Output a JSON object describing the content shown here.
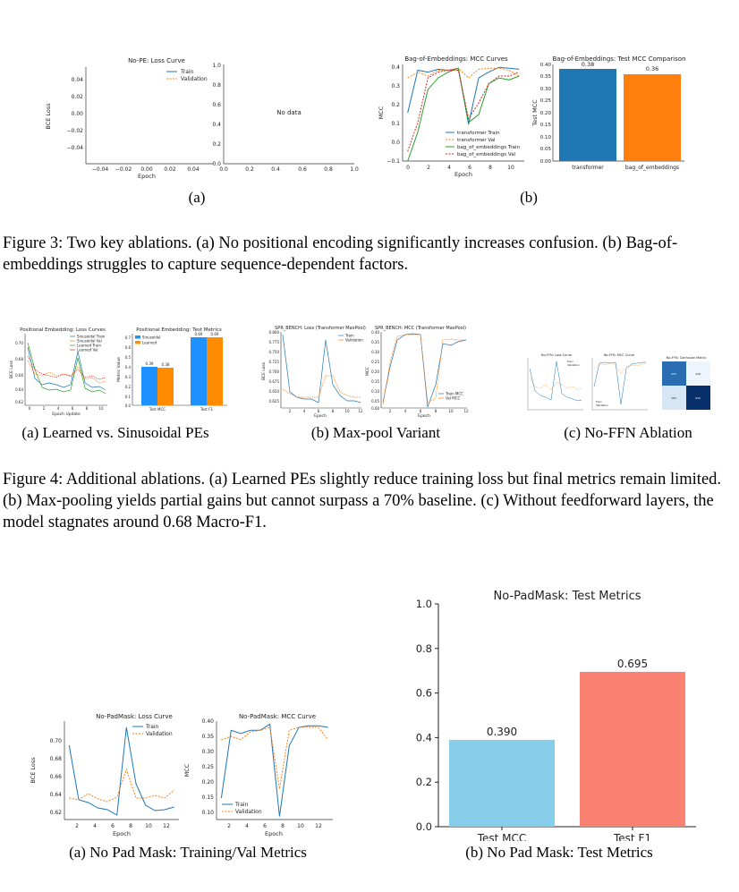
{
  "figure3": {
    "nope_loss": {
      "title": "No-PE: Loss Curve",
      "xlabel": "Epoch",
      "ylabel": "BCE Loss",
      "legend": [
        "Train",
        "Validation"
      ],
      "yticks": [
        "0.04",
        "0.02",
        "0.00",
        "−0.02",
        "−0.04"
      ],
      "xticks": [
        "−0.04",
        "−0.02",
        "0.00",
        "0.02",
        "0.04"
      ]
    },
    "nope_mcc": {
      "text": "No data",
      "yticks": [
        "1.0",
        "0.8",
        "0.6",
        "0.4",
        "0.2",
        "0.0"
      ],
      "xticks": [
        "0.0",
        "0.2",
        "0.4",
        "0.6",
        "0.8",
        "1.0"
      ]
    },
    "sublabel_a": "(a)",
    "boe_curves": {
      "title": "Bag-of-Embeddings: MCC Curves",
      "xlabel": "Epoch",
      "ylabel": "MCC",
      "legend": [
        "transformer Train",
        "transformer Val",
        "bag_of_embeddings Train",
        "bag_of_embeddings Val"
      ]
    },
    "boe_bar": {
      "title": "Bag-of-Embeddings: Test MCC Comparison",
      "ylabel": "Test MCC",
      "yticks": [
        "0.40",
        "0.35",
        "0.30",
        "0.25",
        "0.20",
        "0.15",
        "0.10",
        "0.05",
        "0.00"
      ],
      "labels": [
        "transformer",
        "bag_of_embeddings"
      ],
      "values_text": [
        "0.38",
        "0.36"
      ]
    },
    "sublabel_b": "(b)",
    "caption": "Figure 3: Two key ablations. (a) No positional encoding significantly increases confusion. (b) Bag-of-embeddings struggles to capture sequence-dependent factors."
  },
  "figure4": {
    "pe_loss": {
      "title": "Positional Embedding: Loss Curves",
      "xlabel": "Epoch Update",
      "ylabel": "BCE Loss",
      "legend": [
        "Sinusoidal Train",
        "Sinusoidal Val",
        "Learned Train",
        "Learned Val"
      ]
    },
    "pe_metrics": {
      "title": "Positional Embedding: Test Metrics",
      "ylabel": "Metric Value",
      "legend": [
        "Sinusoidal",
        "Learned"
      ],
      "categories": [
        "Test MCC",
        "Test F1"
      ],
      "values_text": [
        "0.39",
        "0.38",
        "0.69",
        "0.69"
      ]
    },
    "sublabel_a": "(a) Learned vs. Sinusoidal PEs",
    "mp_loss": {
      "title": "SPR_BENCH: Loss (Transformer MaxPool)",
      "xlabel": "Epoch",
      "ylabel": "BCE Loss",
      "legend": [
        "Train",
        "Validation"
      ]
    },
    "mp_mcc": {
      "title": "SPR_BENCH: MCC (Transformer MaxPool)",
      "xlabel": "Epoch",
      "ylabel": "MCC",
      "legend": [
        "Train MCC",
        "Val MCC"
      ]
    },
    "sublabel_b": "(b) Max-pool Variant",
    "nf_loss": {
      "title": "No-FFN: Loss Curve",
      "legend": [
        "Train",
        "Validation"
      ]
    },
    "nf_mcc": {
      "title": "No-FFN: MCC Curve",
      "legend": [
        "Train",
        "Validation"
      ]
    },
    "nf_cm": {
      "title": "No-FFN: Confusion Matrix",
      "cells": [
        "255",
        "128",
        "183",
        "434"
      ]
    },
    "sublabel_c": "(c) No-FFN Ablation",
    "caption": "Figure 4: Additional ablations. (a) Learned PEs slightly reduce training loss but final metrics remain limited. (b) Max-pooling yields partial gains but cannot surpass a 70% baseline. (c) Without feedforward layers, the model stagnates around 0.68 Macro-F1."
  },
  "figure5": {
    "np_loss": {
      "title": "No-PadMask: Loss Curve",
      "xlabel": "Epoch",
      "ylabel": "BCE Loss",
      "legend": [
        "Train",
        "Validation"
      ],
      "yticks": [
        "0.70",
        "0.68",
        "0.66",
        "0.64",
        "0.62"
      ],
      "xticks": [
        "2",
        "4",
        "6",
        "8",
        "10",
        "12"
      ]
    },
    "np_mcc": {
      "title": "No-PadMask: MCC Curve",
      "xlabel": "Epoch",
      "ylabel": "MCC",
      "legend": [
        "Train",
        "Validation"
      ],
      "yticks": [
        "0.40",
        "0.35",
        "0.30",
        "0.25",
        "0.20",
        "0.15",
        "0.10"
      ],
      "xticks": [
        "2",
        "4",
        "6",
        "8",
        "10",
        "12"
      ]
    },
    "sublabel_a": "(a) No Pad Mask: Training/Val Metrics",
    "sublabel_b": "(b) No Pad Mask: Test Metrics"
  },
  "chart_data": [
    {
      "type": "bar",
      "title": "No-PadMask: Test Metrics",
      "categories": [
        "Test MCC",
        "Test F1"
      ],
      "values": [
        0.39,
        0.695
      ],
      "value_labels": [
        "0.390",
        "0.695"
      ],
      "colors": [
        "#87CEEB",
        "#FA8072"
      ],
      "xlabel": "",
      "ylabel": "",
      "ylim": [
        0,
        1.0
      ],
      "yticks": [
        "0.0",
        "0.2",
        "0.4",
        "0.6",
        "0.8",
        "1.0"
      ],
      "grid": false
    },
    {
      "type": "line",
      "title": "No-PadMask: Loss Curve",
      "x": [
        1,
        2,
        3,
        4,
        5,
        6,
        7,
        8,
        9,
        10,
        11,
        12
      ],
      "series": [
        {
          "name": "Train",
          "values": [
            0.695,
            0.634,
            0.631,
            0.625,
            0.623,
            0.617,
            0.715,
            0.652,
            0.628,
            0.622,
            0.623,
            0.626
          ]
        },
        {
          "name": "Validation",
          "values": [
            0.636,
            0.634,
            0.641,
            0.635,
            0.632,
            0.637,
            0.668,
            0.636,
            0.636,
            0.639,
            0.636,
            0.645
          ]
        }
      ],
      "xlabel": "Epoch",
      "ylabel": "BCE Loss",
      "ylim": [
        0.612,
        0.722
      ],
      "xlim": [
        0.5,
        12.5
      ]
    },
    {
      "type": "line",
      "title": "No-PadMask: MCC Curve",
      "x": [
        1,
        2,
        3,
        4,
        5,
        6,
        7,
        8,
        9,
        10,
        11,
        12
      ],
      "series": [
        {
          "name": "Train",
          "values": [
            0.15,
            0.37,
            0.36,
            0.37,
            0.37,
            0.39,
            0.09,
            0.32,
            0.38,
            0.385,
            0.385,
            0.38
          ]
        },
        {
          "name": "Validation",
          "values": [
            0.34,
            0.35,
            0.34,
            0.365,
            0.37,
            0.38,
            0.18,
            0.37,
            0.38,
            0.38,
            0.38,
            0.34
          ]
        }
      ],
      "xlabel": "Epoch",
      "ylabel": "MCC",
      "ylim": [
        0.08,
        0.4
      ],
      "xlim": [
        0.5,
        12.5
      ]
    },
    {
      "type": "line",
      "title": "Bag-of-Embeddings: MCC Curves",
      "x": [
        0,
        1,
        2,
        3,
        4,
        5,
        6,
        7,
        8,
        9,
        10,
        11
      ],
      "series": [
        {
          "name": "transformer Train",
          "values": [
            0.15,
            0.37,
            0.36,
            0.375,
            0.37,
            0.38,
            0.09,
            0.33,
            0.36,
            0.385,
            0.38,
            0.375
          ]
        },
        {
          "name": "transformer Val",
          "values": [
            0.33,
            0.36,
            0.34,
            0.37,
            0.37,
            0.38,
            0.33,
            0.375,
            0.38,
            0.38,
            0.37,
            0.34
          ]
        },
        {
          "name": "bag_of_embeddings Train",
          "values": [
            -0.1,
            0.05,
            0.27,
            0.33,
            0.36,
            0.38,
            0.1,
            0.14,
            0.3,
            0.33,
            0.32,
            0.34
          ]
        },
        {
          "name": "bag_of_embeddings Val",
          "values": [
            -0.05,
            0.1,
            0.33,
            0.36,
            0.37,
            0.37,
            0.12,
            0.2,
            0.3,
            0.34,
            0.34,
            0.36
          ]
        }
      ],
      "xlabel": "Epoch",
      "ylabel": "MCC",
      "ylim": [
        -0.1,
        0.4
      ],
      "xlim": [
        -0.5,
        11.5
      ]
    },
    {
      "type": "bar",
      "title": "Bag-of-Embeddings: Test MCC Comparison",
      "categories": [
        "transformer",
        "bag_of_embeddings"
      ],
      "values": [
        0.38,
        0.36
      ],
      "colors": [
        "#1f77b4",
        "#ff7f0e"
      ],
      "ylabel": "Test MCC",
      "ylim": [
        0,
        0.4
      ]
    },
    {
      "type": "bar",
      "title": "Positional Embedding: Test Metrics",
      "categories": [
        "Test MCC",
        "Test F1"
      ],
      "series": [
        {
          "name": "Sinusoidal",
          "values": [
            0.39,
            0.69
          ]
        },
        {
          "name": "Learned",
          "values": [
            0.38,
            0.69
          ]
        }
      ],
      "ylabel": "Metric Value",
      "ylim": [
        0,
        0.7
      ]
    }
  ]
}
